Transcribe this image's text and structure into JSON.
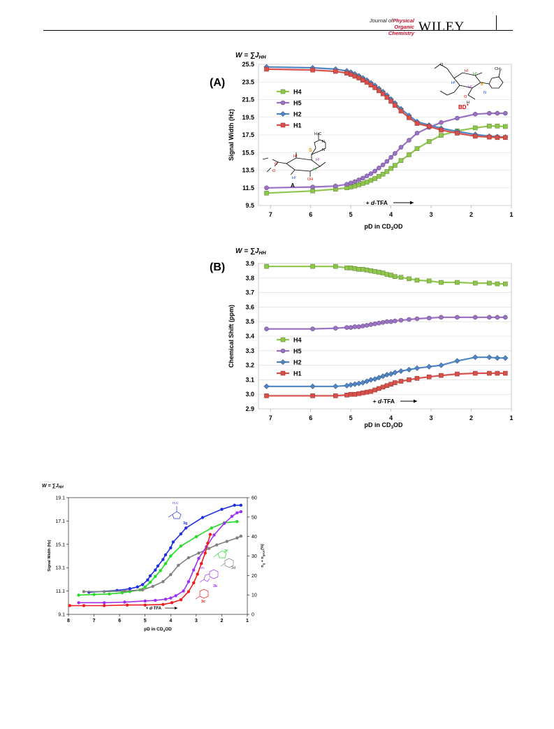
{
  "header": {
    "journal_line1_prefix": "Journal of",
    "journal_line1_bold": "Physical",
    "journal_line2": "Organic Chemistry",
    "publisher": "WILEY"
  },
  "colors": {
    "H4": "#8fc74d",
    "H5": "#9b72c4",
    "H2": "#4f86c6",
    "H1": "#d9504b",
    "3g": "#1f2fe0",
    "3f": "#22dd22",
    "3d": "#808080",
    "3k": "#a030f0",
    "3c": "#f21a1a"
  },
  "panelA": {
    "label": "(A)",
    "formula": "W = ∑J",
    "formula_sub": "HH",
    "structure_A_label": "A",
    "structure_BD_label": "BD",
    "structure_BD_sup": "+",
    "structure_image": "thiopyranoside-structure-drawings",
    "arrow_text": "+ d-TFA",
    "chart_data": {
      "type": "line",
      "xlabel": "pD in CD3OD",
      "ylabel": "Signal Width (Hz)",
      "xlim": [
        7.3,
        1
      ],
      "ylim": [
        9.5,
        25.5
      ],
      "xticks": [
        "7",
        "6",
        "5",
        "4",
        "3",
        "2",
        "1"
      ],
      "yticks": [
        "9.5",
        "11.5",
        "13.5",
        "15.5",
        "17.5",
        "19.5",
        "21.5",
        "23.5",
        "25.5"
      ],
      "legend": [
        "H4",
        "H5",
        "H2",
        "H1"
      ],
      "legend_position": "left",
      "series": [
        {
          "name": "H4",
          "marker": "square",
          "x": [
            7.1,
            5.95,
            5.38,
            5.1,
            5.0,
            4.9,
            4.8,
            4.7,
            4.6,
            4.5,
            4.4,
            4.3,
            4.2,
            4.1,
            4.0,
            3.9,
            3.75,
            3.55,
            3.35,
            3.05,
            2.75,
            2.35,
            1.9,
            1.55,
            1.35,
            1.15
          ],
          "y": [
            10.9,
            11.15,
            11.35,
            11.5,
            11.6,
            11.7,
            11.85,
            12.0,
            12.15,
            12.35,
            12.55,
            12.8,
            13.05,
            13.35,
            13.7,
            14.05,
            14.6,
            15.25,
            15.95,
            16.75,
            17.45,
            17.95,
            18.3,
            18.5,
            18.5,
            18.45
          ]
        },
        {
          "name": "H5",
          "marker": "circle",
          "x": [
            7.1,
            5.95,
            5.38,
            5.1,
            5.0,
            4.9,
            4.8,
            4.7,
            4.6,
            4.5,
            4.4,
            4.3,
            4.2,
            4.1,
            4.0,
            3.9,
            3.75,
            3.55,
            3.35,
            3.05,
            2.75,
            2.35,
            1.9,
            1.55,
            1.35,
            1.15
          ],
          "y": [
            11.5,
            11.6,
            11.7,
            11.9,
            12.05,
            12.2,
            12.4,
            12.6,
            12.85,
            13.1,
            13.4,
            13.75,
            14.1,
            14.5,
            14.95,
            15.4,
            16.1,
            16.9,
            17.7,
            18.35,
            18.9,
            19.4,
            19.85,
            19.95,
            19.95,
            19.95
          ]
        },
        {
          "name": "H2",
          "marker": "diamond",
          "x": [
            7.1,
            5.95,
            5.38,
            5.1,
            5.0,
            4.9,
            4.8,
            4.7,
            4.6,
            4.5,
            4.4,
            4.3,
            4.2,
            4.1,
            4.0,
            3.9,
            3.75,
            3.55,
            3.35,
            3.05,
            2.75,
            2.35,
            1.9,
            1.55,
            1.35,
            1.15
          ],
          "y": [
            25.2,
            25.1,
            24.95,
            24.75,
            24.6,
            24.4,
            24.2,
            23.95,
            23.7,
            23.4,
            23.1,
            22.75,
            22.4,
            22.0,
            21.55,
            21.1,
            20.45,
            19.7,
            19.0,
            18.6,
            18.25,
            17.9,
            17.55,
            17.35,
            17.3,
            17.25
          ]
        },
        {
          "name": "H1",
          "marker": "square",
          "x": [
            7.1,
            5.95,
            5.38,
            5.1,
            5.0,
            4.9,
            4.8,
            4.7,
            4.6,
            4.5,
            4.4,
            4.3,
            4.2,
            4.1,
            4.0,
            3.9,
            3.75,
            3.55,
            3.35,
            3.05,
            2.75,
            2.35,
            1.9,
            1.55,
            1.35,
            1.15
          ],
          "y": [
            24.95,
            24.85,
            24.7,
            24.5,
            24.35,
            24.15,
            23.95,
            23.7,
            23.45,
            23.15,
            22.85,
            22.5,
            22.15,
            21.75,
            21.3,
            20.85,
            20.2,
            19.45,
            18.8,
            18.45,
            18.05,
            17.7,
            17.35,
            17.25,
            17.2,
            17.2
          ]
        }
      ]
    }
  },
  "panelB": {
    "label": "(B)",
    "formula": "W = ∑J",
    "formula_sub": "HH",
    "arrow_text": "+ d-TFA",
    "chart_data": {
      "type": "line",
      "xlabel": "pD in CD3OD",
      "ylabel": "Chemical Shift (ppm)",
      "xlim": [
        7.3,
        1
      ],
      "ylim": [
        2.9,
        3.9
      ],
      "xticks": [
        "7",
        "6",
        "5",
        "4",
        "3",
        "2",
        "1"
      ],
      "yticks": [
        "2.9",
        "3.0",
        "3.1",
        "3.2",
        "3.3",
        "3.4",
        "3.5",
        "3.6",
        "3.7",
        "3.8",
        "3.9"
      ],
      "legend": [
        "H4",
        "H5",
        "H2",
        "H1"
      ],
      "legend_position": "left",
      "series": [
        {
          "name": "H4",
          "marker": "square",
          "x": [
            7.1,
            5.95,
            5.38,
            5.1,
            5.0,
            4.9,
            4.8,
            4.7,
            4.6,
            4.5,
            4.4,
            4.3,
            4.2,
            4.1,
            4.0,
            3.9,
            3.75,
            3.55,
            3.35,
            3.05,
            2.75,
            2.35,
            1.9,
            1.55,
            1.35,
            1.15
          ],
          "y": [
            3.88,
            3.88,
            3.88,
            3.87,
            3.87,
            3.865,
            3.86,
            3.86,
            3.855,
            3.85,
            3.845,
            3.84,
            3.835,
            3.825,
            3.82,
            3.81,
            3.805,
            3.795,
            3.785,
            3.78,
            3.77,
            3.77,
            3.765,
            3.765,
            3.76,
            3.76
          ]
        },
        {
          "name": "H5",
          "marker": "circle",
          "x": [
            7.1,
            5.95,
            5.38,
            5.1,
            5.0,
            4.9,
            4.8,
            4.7,
            4.6,
            4.5,
            4.4,
            4.3,
            4.2,
            4.1,
            4.0,
            3.9,
            3.75,
            3.55,
            3.35,
            3.05,
            2.75,
            2.35,
            1.9,
            1.55,
            1.35,
            1.15
          ],
          "y": [
            3.45,
            3.45,
            3.455,
            3.46,
            3.46,
            3.465,
            3.465,
            3.47,
            3.475,
            3.48,
            3.485,
            3.49,
            3.495,
            3.5,
            3.5,
            3.505,
            3.51,
            3.515,
            3.52,
            3.525,
            3.53,
            3.53,
            3.53,
            3.53,
            3.53,
            3.53
          ]
        },
        {
          "name": "H2",
          "marker": "diamond",
          "x": [
            7.1,
            5.95,
            5.38,
            5.1,
            5.0,
            4.9,
            4.8,
            4.7,
            4.6,
            4.5,
            4.4,
            4.3,
            4.2,
            4.1,
            4.0,
            3.9,
            3.75,
            3.55,
            3.35,
            3.05,
            2.75,
            2.35,
            1.9,
            1.55,
            1.35,
            1.15
          ],
          "y": [
            3.055,
            3.055,
            3.055,
            3.06,
            3.065,
            3.07,
            3.075,
            3.08,
            3.09,
            3.1,
            3.105,
            3.115,
            3.125,
            3.135,
            3.14,
            3.15,
            3.16,
            3.17,
            3.18,
            3.19,
            3.2,
            3.23,
            3.255,
            3.255,
            3.25,
            3.25
          ]
        },
        {
          "name": "H1",
          "marker": "square",
          "x": [
            7.1,
            5.95,
            5.38,
            5.1,
            5.0,
            4.9,
            4.8,
            4.7,
            4.6,
            4.5,
            4.4,
            4.3,
            4.2,
            4.1,
            4.0,
            3.9,
            3.75,
            3.55,
            3.35,
            3.05,
            2.75,
            2.35,
            1.9,
            1.55,
            1.35,
            1.15
          ],
          "y": [
            2.99,
            2.99,
            2.99,
            2.995,
            3.0,
            3.0,
            3.005,
            3.01,
            3.015,
            3.02,
            3.03,
            3.04,
            3.05,
            3.06,
            3.07,
            3.08,
            3.09,
            3.1,
            3.11,
            3.12,
            3.13,
            3.14,
            3.145,
            3.145,
            3.145,
            3.145
          ]
        }
      ]
    }
  },
  "panelC": {
    "formula": "W = ∑J",
    "formula_sub": "HH",
    "arrow_text": "+ d-TFA",
    "y2label_pre": "n",
    "y2label_sub1": "g",
    "y2label_mid": " + n",
    "y2label_sub2": "gauc",
    "y2label_post": "(%)",
    "compound_labels": [
      "3g",
      "3f",
      "3d",
      "3k",
      "3c"
    ],
    "chart_data": {
      "type": "line",
      "xlabel": "pD in CD3OD",
      "ylabel": "Signal Width (Hz)",
      "xlim": [
        8,
        1
      ],
      "ylim": [
        9.1,
        19.1
      ],
      "y2lim": [
        0,
        60
      ],
      "xticks": [
        "8",
        "7",
        "6",
        "5",
        "4",
        "3",
        "2",
        "1"
      ],
      "yticks": [
        "9.1",
        "11.1",
        "13.1",
        "15.1",
        "17.1",
        "19.1"
      ],
      "y2ticks": [
        "0",
        "10",
        "20",
        "30",
        "40",
        "50",
        "60"
      ],
      "series": [
        {
          "name": "3g",
          "x": [
            7.2,
            6.1,
            5.6,
            5.3,
            5.1,
            4.9,
            4.8,
            4.6,
            4.5,
            4.3,
            4.2,
            4.0,
            3.9,
            3.6,
            3.4,
            2.75,
            2.0,
            1.5,
            1.25
          ],
          "y": [
            11.0,
            11.15,
            11.3,
            11.45,
            11.65,
            12.05,
            12.4,
            12.9,
            13.25,
            13.8,
            14.2,
            14.8,
            15.3,
            16.0,
            16.5,
            17.4,
            18.1,
            18.45,
            18.45
          ]
        },
        {
          "name": "3f",
          "x": [
            7.6,
            7.0,
            6.4,
            5.9,
            5.6,
            5.2,
            5.0,
            4.8,
            4.6,
            4.4,
            4.2,
            4.0,
            3.6,
            3.0,
            2.4,
            1.9,
            1.4
          ],
          "y": [
            10.75,
            10.8,
            10.85,
            10.95,
            11.05,
            11.2,
            11.45,
            11.85,
            12.35,
            12.85,
            13.45,
            14.1,
            14.95,
            15.75,
            16.5,
            16.95,
            17.05
          ]
        },
        {
          "name": "3d",
          "x": [
            7.4,
            6.6,
            5.8,
            5.1,
            4.7,
            4.3,
            4.0,
            3.7,
            3.3,
            2.9,
            2.5,
            2.2,
            1.8,
            1.4,
            1.25
          ],
          "y": [
            11.05,
            11.05,
            11.1,
            11.2,
            11.5,
            11.9,
            12.5,
            13.3,
            13.95,
            14.35,
            14.75,
            15.05,
            15.35,
            15.65,
            15.8
          ]
        },
        {
          "name": "3k",
          "x": [
            7.6,
            6.6,
            5.8,
            5.0,
            4.6,
            4.2,
            4.0,
            3.8,
            3.5,
            3.3,
            3.1,
            2.9,
            2.6,
            2.3,
            1.9,
            1.6,
            1.4,
            1.25
          ],
          "y": [
            10.1,
            10.1,
            10.15,
            10.25,
            10.3,
            10.4,
            10.5,
            10.7,
            11.1,
            11.9,
            12.9,
            13.9,
            14.9,
            15.9,
            16.9,
            17.5,
            17.8,
            17.9
          ]
        },
        {
          "name": "3c",
          "x": [
            7.95,
            7.4,
            6.6,
            5.7,
            5.0,
            4.3,
            3.95,
            3.6,
            3.3,
            3.1,
            2.95,
            2.8,
            2.65,
            2.55,
            2.45
          ],
          "y": [
            9.85,
            9.85,
            9.85,
            9.9,
            9.9,
            9.95,
            10.1,
            10.35,
            11.05,
            11.8,
            12.55,
            13.45,
            14.35,
            15.2,
            15.95
          ]
        }
      ]
    }
  }
}
